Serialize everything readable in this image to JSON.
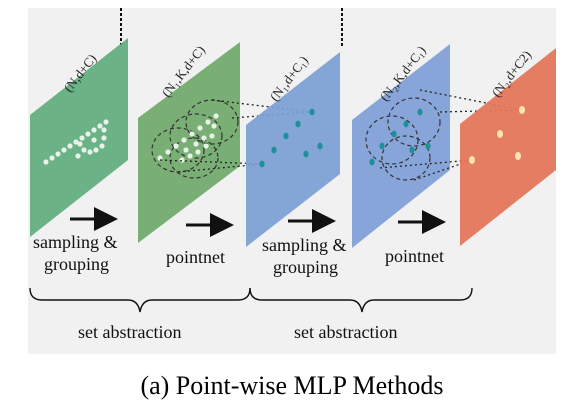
{
  "panels": [
    {
      "id": "input",
      "label": "(N,d+C)",
      "color": "#5fae7e"
    },
    {
      "id": "grouped1",
      "label": "(N₁,K,d+C)",
      "color": "#6fa86a"
    },
    {
      "id": "sampled1",
      "label": "(N₁,d+C₁)",
      "color": "#7a9fd4"
    },
    {
      "id": "grouped2",
      "label": "(N₂,K,d+C₁)",
      "color": "#7f9ed8"
    },
    {
      "id": "output",
      "label": "(N₂,d+C2)",
      "color": "#e4765a"
    }
  ],
  "steps": [
    {
      "line1": "sampling &",
      "line2": "grouping"
    },
    {
      "line1": "pointnet",
      "line2": ""
    },
    {
      "line1": "sampling &",
      "line2": "grouping"
    },
    {
      "line1": "pointnet",
      "line2": ""
    }
  ],
  "groups": [
    {
      "label": "set abstraction"
    },
    {
      "label": "set abstraction"
    }
  ],
  "caption": "(a) Point-wise MLP Methods",
  "colors": {
    "background": "#f1f1f1",
    "point_light": "#e8f2e8",
    "point_teal": "#1f8f99",
    "point_peach": "#ffe3b0"
  }
}
